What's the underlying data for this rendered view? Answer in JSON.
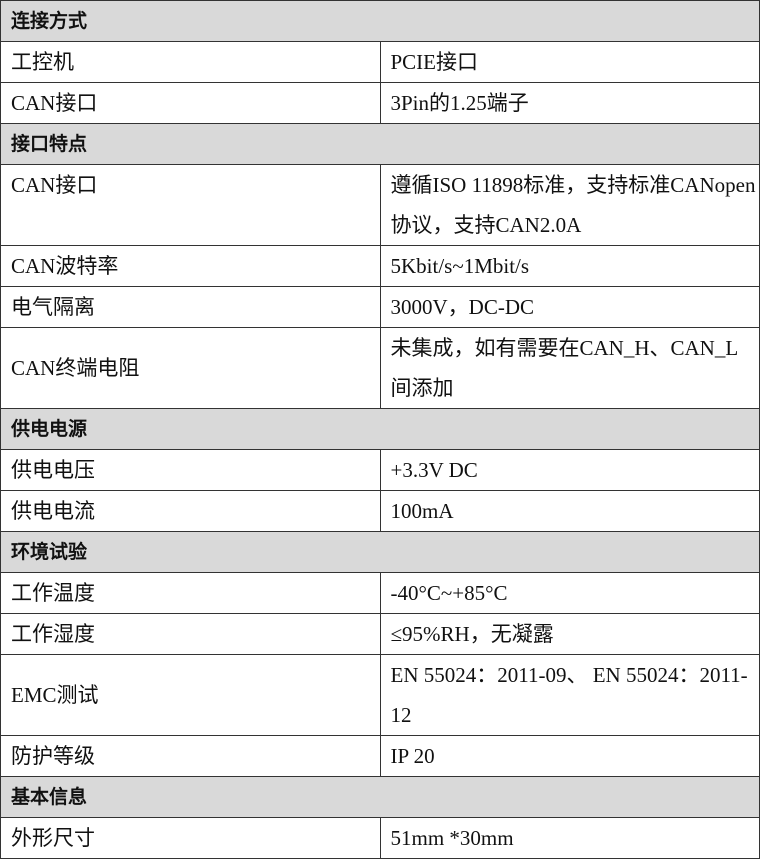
{
  "sections": [
    {
      "title": "连接方式",
      "rows": [
        {
          "label": "工控机",
          "value": "PCIE接口"
        },
        {
          "label": "CAN接口",
          "value": "3Pin的1.25端子"
        }
      ]
    },
    {
      "title": "接口特点",
      "rows": [
        {
          "label": "CAN接口",
          "value": "遵循ISO 11898标准，支持标准CANopen协议，支持CAN2.0A"
        },
        {
          "label": "CAN波特率",
          "value": "5Kbit/s~1Mbit/s"
        },
        {
          "label": "电气隔离",
          "value": "3000V，DC-DC"
        },
        {
          "label": "CAN终端电阻",
          "value": "未集成，如有需要在CAN_H、CAN_L间添加"
        }
      ]
    },
    {
      "title": "供电电源",
      "rows": [
        {
          "label": "供电电压",
          "value": "+3.3V DC"
        },
        {
          "label": "供电电流",
          "value": "100mA"
        }
      ]
    },
    {
      "title": "环境试验",
      "rows": [
        {
          "label": "工作温度",
          "value": "-40°C~+85°C"
        },
        {
          "label": "工作湿度",
          "value": "≤95%RH，无凝露"
        },
        {
          "label": "EMC测试",
          "value": "EN 55024：2011-09、 EN 55024：2011-12"
        },
        {
          "label": "防护等级",
          "value": "IP 20"
        }
      ]
    },
    {
      "title": "基本信息",
      "rows": [
        {
          "label": "外形尺寸",
          "value": "51mm *30mm"
        }
      ]
    }
  ]
}
